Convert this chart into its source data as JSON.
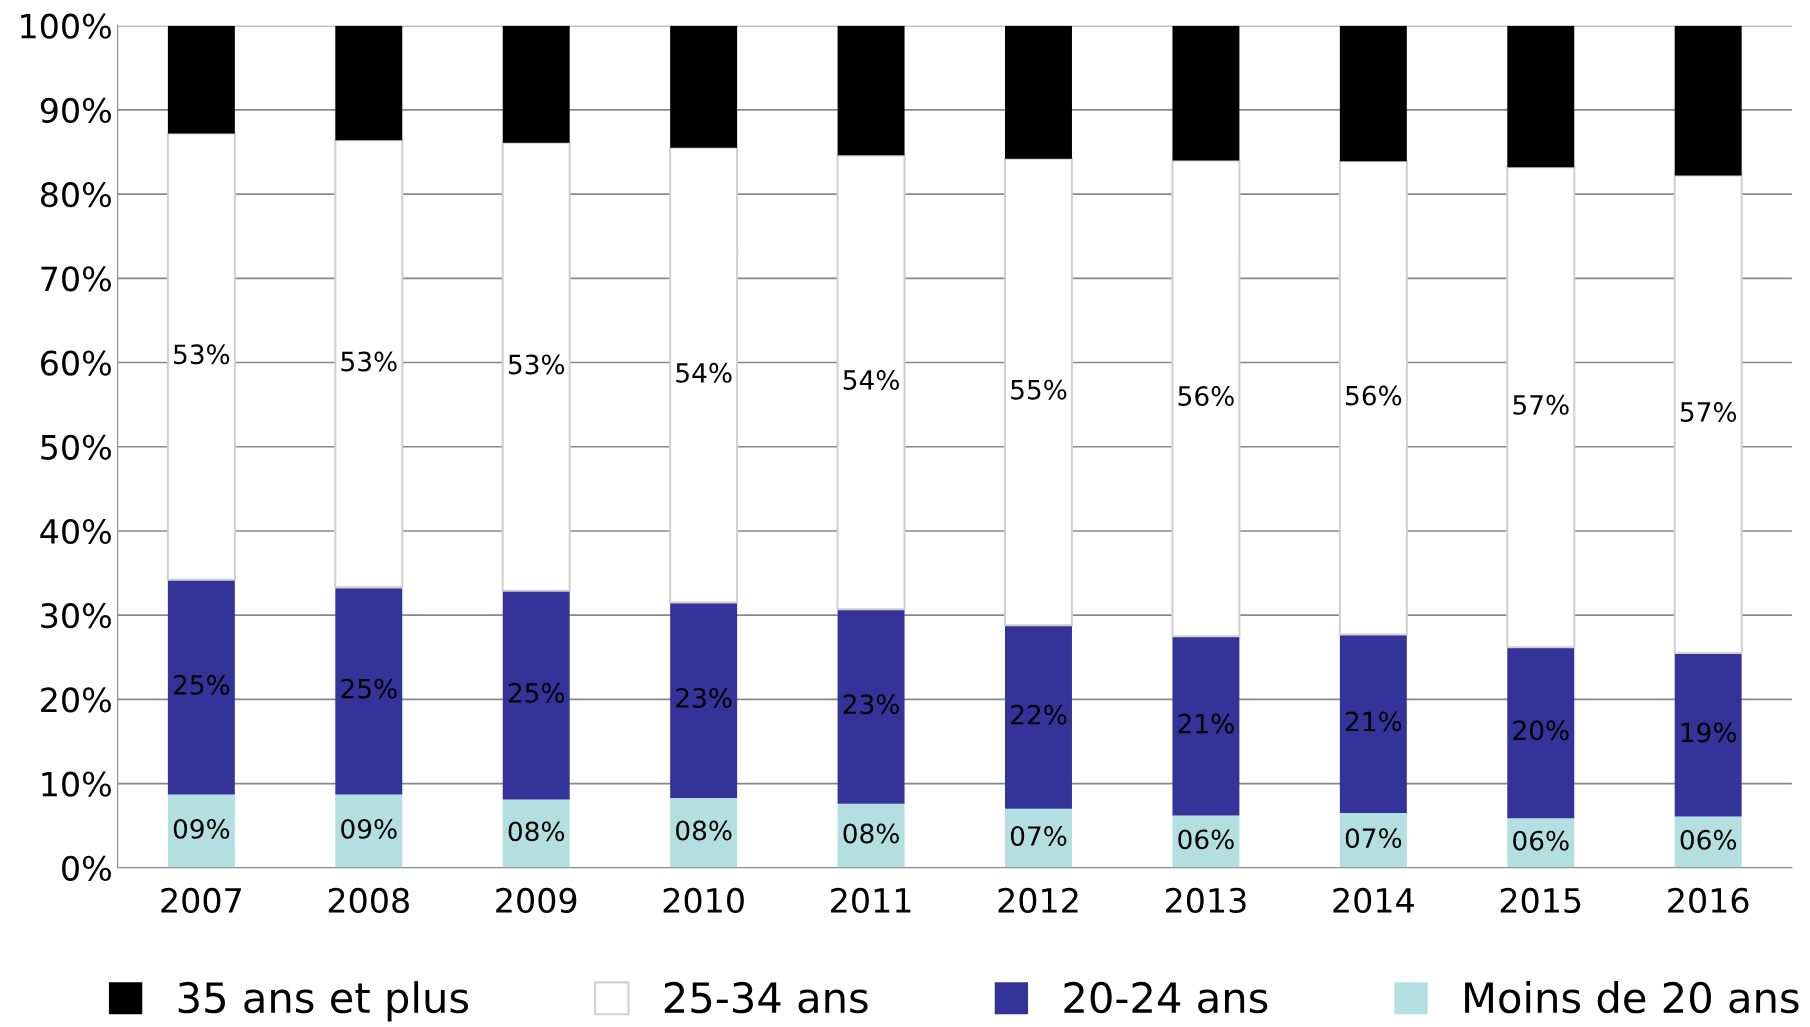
{
  "chart_data": {
    "type": "bar",
    "stacked": true,
    "categories": [
      "2007",
      "2008",
      "2009",
      "2010",
      "2011",
      "2012",
      "2013",
      "2014",
      "2015",
      "2016"
    ],
    "series": [
      {
        "name": "Moins de 20 ans",
        "color": "#b3dfe0",
        "values": [
          8.7,
          8.7,
          8.1,
          8.3,
          7.6,
          7.0,
          6.2,
          6.5,
          5.9,
          6.1
        ],
        "value_labels": [
          "09%",
          "09%",
          "08%",
          "08%",
          "08%",
          "07%",
          "06%",
          "07%",
          "06%",
          "06%"
        ]
      },
      {
        "name": "20-24 ans",
        "color": "#333399",
        "values": [
          25.5,
          24.6,
          24.8,
          23.2,
          23.1,
          21.8,
          21.3,
          21.2,
          20.3,
          19.4
        ],
        "value_labels": [
          "25%",
          "25%",
          "25%",
          "23%",
          "23%",
          "22%",
          "21%",
          "21%",
          "20%",
          "19%"
        ]
      },
      {
        "name": "25-34 ans",
        "color": "#ffffff",
        "values": [
          53.0,
          53.1,
          53.2,
          54.0,
          53.9,
          55.4,
          56.5,
          56.2,
          57.0,
          56.7
        ],
        "value_labels": [
          "53%",
          "53%",
          "53%",
          "54%",
          "54%",
          "55%",
          "56%",
          "56%",
          "57%",
          "57%"
        ]
      },
      {
        "name": "35 ans et plus",
        "color": "#000000",
        "values": [
          12.8,
          13.6,
          13.9,
          14.5,
          15.4,
          15.8,
          16.0,
          16.1,
          16.8,
          17.8
        ]
      }
    ],
    "ylim": [
      0,
      100
    ],
    "yticks": [
      {
        "value": 0,
        "label": "0%"
      },
      {
        "value": 10,
        "label": "10%"
      },
      {
        "value": 20,
        "label": "20%"
      },
      {
        "value": 30,
        "label": "30%"
      },
      {
        "value": 40,
        "label": "40%"
      },
      {
        "value": 50,
        "label": "50%"
      },
      {
        "value": 60,
        "label": "60%"
      },
      {
        "value": 70,
        "label": "70%"
      },
      {
        "value": 80,
        "label": "80%"
      },
      {
        "value": 90,
        "label": "90%"
      },
      {
        "value": 100,
        "label": "100%"
      }
    ],
    "grid": "y",
    "legend": "bottom"
  }
}
